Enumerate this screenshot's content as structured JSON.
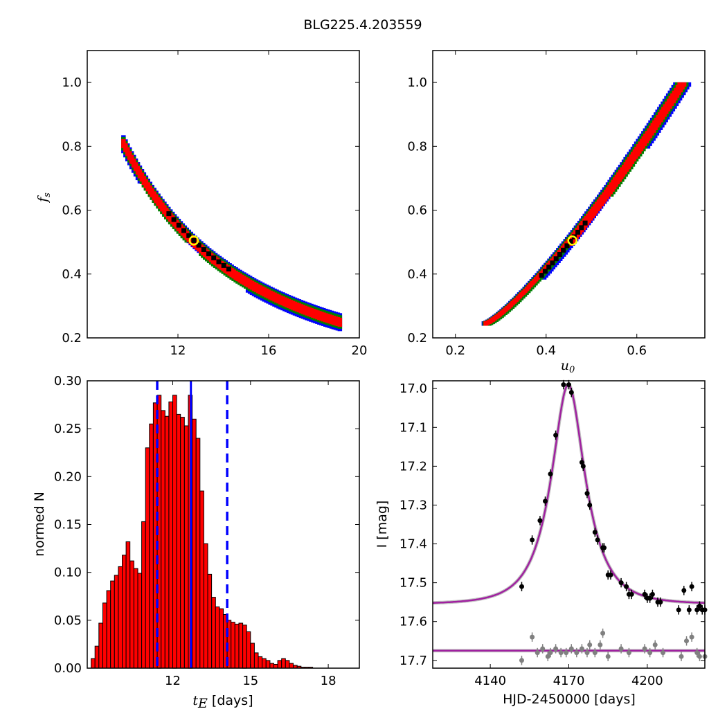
{
  "figure_title": "BLG225.4.203559",
  "colors": {
    "sigma1": "#000000",
    "sigma2": "#ff0000",
    "sigma3": "#008000",
    "sigma4": "#0000ff",
    "best_fit_marker": "#ffff00",
    "hist_bar": "#ff0000",
    "vline": "#0000ff",
    "model_curve": "#a020a0",
    "data_primary": "#000000",
    "data_secondary": "#808080"
  },
  "chart_data": [
    {
      "id": "fs_vs_tE",
      "type": "heatmap",
      "xlabel": "",
      "ylabel": "f",
      "ylabel_sub": "s",
      "xlim": [
        8,
        20
      ],
      "ylim": [
        0.2,
        1.1
      ],
      "xticks": [
        12,
        16,
        20
      ],
      "yticks": [
        0.2,
        0.4,
        0.6,
        0.8,
        1.0
      ],
      "xtick_labels": [
        "12",
        "16",
        "20"
      ],
      "ytick_labels": [
        "0.2",
        "0.4",
        "0.6",
        "0.8",
        "1.0"
      ],
      "curve": {
        "a": 5.0,
        "b": 1.0,
        "p": 1.7
      },
      "span": [
        9.6,
        19.2
      ],
      "best_fit": {
        "x": 12.7,
        "y": 0.505
      }
    },
    {
      "id": "fs_vs_u0",
      "type": "heatmap",
      "xlabel": "u",
      "xlabel_sub": "0",
      "ylabel": "",
      "xlim": [
        0.15,
        0.75
      ],
      "ylim": [
        0.2,
        1.1
      ],
      "xticks": [
        0.2,
        0.4,
        0.6
      ],
      "yticks": [
        0.2,
        0.4,
        0.6,
        0.8,
        1.0
      ],
      "xtick_labels": [
        "0.2",
        "0.4",
        "0.6"
      ],
      "ytick_labels": [
        "0.2",
        "0.4",
        "0.6",
        "0.8",
        "1.0"
      ],
      "curve": {
        "x0": 0.27,
        "y0": 0.245,
        "x1": 0.705,
        "y1": 1.0,
        "p": 1.25
      },
      "best_fit": {
        "x": 0.458,
        "y": 0.505
      }
    },
    {
      "id": "tE_histogram",
      "type": "bar",
      "xlabel": "t",
      "xlabel_sub": "E",
      "xlabel_unit": " [days]",
      "ylabel": "normed N",
      "xlim": [
        8.7,
        19.2
      ],
      "ylim": [
        0,
        0.3
      ],
      "xticks": [
        12,
        15,
        18
      ],
      "yticks": [
        0,
        0.05,
        0.1,
        0.15,
        0.2,
        0.25,
        0.3
      ],
      "xtick_labels": [
        "12",
        "15",
        "18"
      ],
      "ytick_labels": [
        "0.00",
        "0.05",
        "0.10",
        "0.15",
        "0.20",
        "0.25",
        "0.30"
      ],
      "bin_start": 8.85,
      "bin_width": 0.15,
      "values": [
        0.01,
        0.023,
        0.047,
        0.068,
        0.081,
        0.091,
        0.097,
        0.106,
        0.118,
        0.132,
        0.112,
        0.104,
        0.099,
        0.153,
        0.23,
        0.255,
        0.277,
        0.285,
        0.269,
        0.263,
        0.278,
        0.285,
        0.265,
        0.262,
        0.253,
        0.285,
        0.26,
        0.24,
        0.185,
        0.13,
        0.098,
        0.074,
        0.064,
        0.062,
        0.056,
        0.05,
        0.048,
        0.046,
        0.047,
        0.045,
        0.038,
        0.026,
        0.016,
        0.012,
        0.01,
        0.008,
        0.005,
        0.004,
        0.008,
        0.01,
        0.008,
        0.005,
        0.003,
        0.002,
        0.001,
        0.001,
        0.001
      ],
      "median": 12.7,
      "conf_low": 11.4,
      "conf_high": 14.1
    },
    {
      "id": "light_curve",
      "type": "scatter",
      "xlabel": "HJD-2450000 [days]",
      "ylabel": "I [mag]",
      "xlim": [
        4118,
        4222
      ],
      "ylim": [
        17.72,
        16.98
      ],
      "y_inverted": true,
      "xticks": [
        4140,
        4170,
        4200
      ],
      "yticks": [
        17.0,
        17.1,
        17.2,
        17.3,
        17.4,
        17.5,
        17.6,
        17.7
      ],
      "xtick_labels": [
        "4140",
        "4170",
        "4200"
      ],
      "ytick_labels": [
        "17.0",
        "17.1",
        "17.2",
        "17.3",
        "17.4",
        "17.5",
        "17.6",
        "17.7"
      ],
      "model": {
        "t0": 4169.8,
        "tE": 12.7,
        "u0": 0.458,
        "fs": 0.505,
        "base_mag": 17.555
      },
      "model2_mag": 17.675,
      "series": [
        {
          "points": [
            [
              4152,
              17.51
            ],
            [
              4156,
              17.39
            ],
            [
              4159,
              17.34
            ],
            [
              4161,
              17.29
            ],
            [
              4163,
              17.22
            ],
            [
              4165,
              17.12
            ],
            [
              4168,
              16.99
            ],
            [
              4170,
              16.99
            ],
            [
              4171,
              17.01
            ],
            [
              4175,
              17.19
            ],
            [
              4175.5,
              17.2
            ],
            [
              4177,
              17.27
            ],
            [
              4178,
              17.3
            ],
            [
              4180,
              17.37
            ],
            [
              4181,
              17.39
            ],
            [
              4183,
              17.41
            ],
            [
              4183.5,
              17.41
            ],
            [
              4185,
              17.48
            ],
            [
              4186,
              17.48
            ],
            [
              4190,
              17.5
            ],
            [
              4192,
              17.51
            ],
            [
              4193,
              17.53
            ],
            [
              4194,
              17.53
            ],
            [
              4199,
              17.53
            ],
            [
              4200,
              17.54
            ],
            [
              4201,
              17.54
            ],
            [
              4202,
              17.53
            ],
            [
              4204,
              17.55
            ],
            [
              4205,
              17.55
            ],
            [
              4212,
              17.57
            ],
            [
              4214,
              17.52
            ],
            [
              4216,
              17.57
            ],
            [
              4217,
              17.51
            ],
            [
              4219,
              17.57
            ],
            [
              4220,
              17.56
            ],
            [
              4221,
              17.57
            ],
            [
              4222,
              17.57
            ]
          ]
        },
        {
          "points": [
            [
              4152,
              17.7
            ],
            [
              4156,
              17.64
            ],
            [
              4158,
              17.68
            ],
            [
              4160,
              17.67
            ],
            [
              4162,
              17.69
            ],
            [
              4163,
              17.68
            ],
            [
              4165,
              17.67
            ],
            [
              4167,
              17.68
            ],
            [
              4169,
              17.68
            ],
            [
              4171,
              17.67
            ],
            [
              4173,
              17.68
            ],
            [
              4175,
              17.67
            ],
            [
              4177,
              17.68
            ],
            [
              4178,
              17.66
            ],
            [
              4180,
              17.68
            ],
            [
              4182,
              17.66
            ],
            [
              4183,
              17.63
            ],
            [
              4185,
              17.69
            ],
            [
              4190,
              17.67
            ],
            [
              4193,
              17.68
            ],
            [
              4199,
              17.67
            ],
            [
              4201,
              17.68
            ],
            [
              4203,
              17.66
            ],
            [
              4206,
              17.68
            ],
            [
              4213,
              17.69
            ],
            [
              4215,
              17.65
            ],
            [
              4217,
              17.64
            ],
            [
              4219,
              17.68
            ],
            [
              4220,
              17.69
            ],
            [
              4222,
              17.69
            ]
          ]
        }
      ]
    }
  ]
}
